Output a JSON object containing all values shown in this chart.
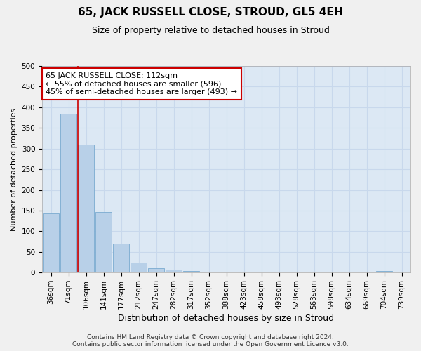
{
  "title": "65, JACK RUSSELL CLOSE, STROUD, GL5 4EH",
  "subtitle": "Size of property relative to detached houses in Stroud",
  "xlabel": "Distribution of detached houses by size in Stroud",
  "ylabel": "Number of detached properties",
  "bar_labels": [
    "36sqm",
    "71sqm",
    "106sqm",
    "141sqm",
    "177sqm",
    "212sqm",
    "247sqm",
    "282sqm",
    "317sqm",
    "352sqm",
    "388sqm",
    "423sqm",
    "458sqm",
    "493sqm",
    "528sqm",
    "563sqm",
    "598sqm",
    "634sqm",
    "669sqm",
    "704sqm",
    "739sqm"
  ],
  "bar_values": [
    143,
    385,
    310,
    147,
    70,
    24,
    10,
    7,
    4,
    0,
    0,
    0,
    0,
    0,
    0,
    0,
    0,
    0,
    0,
    4,
    0
  ],
  "bar_color": "#b8d0e8",
  "bar_edge_color": "#7aaad0",
  "vline_color": "#cc0000",
  "vline_index": 2,
  "annotation_text_line1": "65 JACK RUSSELL CLOSE: 112sqm",
  "annotation_text_line2": "← 55% of detached houses are smaller (596)",
  "annotation_text_line3": "45% of semi-detached houses are larger (493) →",
  "annotation_box_facecolor": "#ffffff",
  "annotation_box_edgecolor": "#cc0000",
  "ylim": [
    0,
    500
  ],
  "yticks": [
    0,
    50,
    100,
    150,
    200,
    250,
    300,
    350,
    400,
    450,
    500
  ],
  "grid_color": "#c8d8ec",
  "plot_bg_color": "#dce8f4",
  "fig_bg_color": "#f0f0f0",
  "footer": "Contains HM Land Registry data © Crown copyright and database right 2024.\nContains public sector information licensed under the Open Government Licence v3.0.",
  "title_fontsize": 11,
  "subtitle_fontsize": 9,
  "xlabel_fontsize": 9,
  "ylabel_fontsize": 8,
  "tick_fontsize": 7.5,
  "footer_fontsize": 6.5
}
